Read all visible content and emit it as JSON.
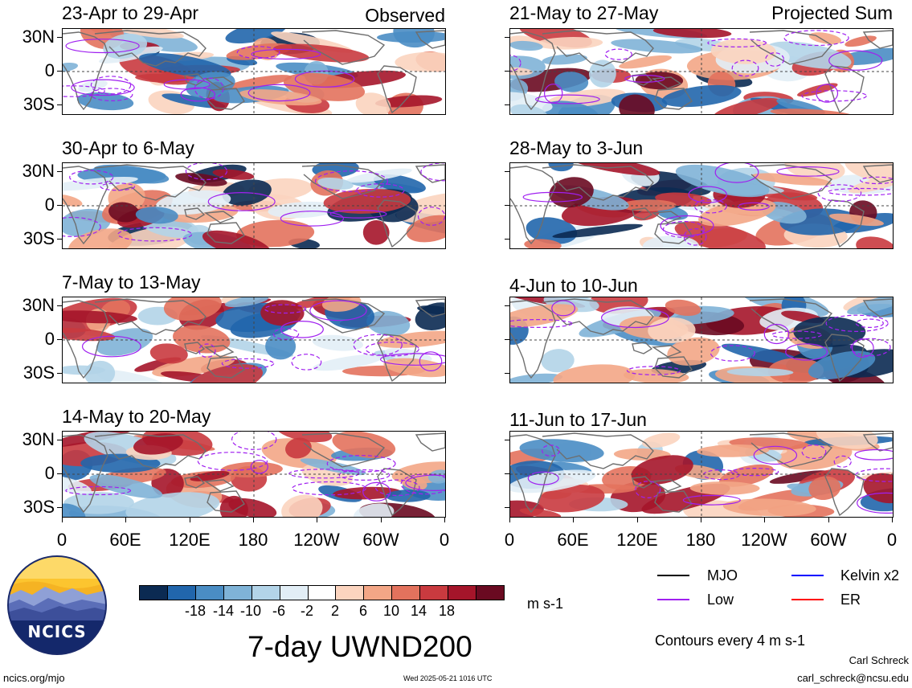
{
  "headers": {
    "left": "Observed",
    "right": "Projected Sum"
  },
  "panels": {
    "left": [
      {
        "title": "23-Apr to 29-Apr"
      },
      {
        "title": "30-Apr to 6-May"
      },
      {
        "title": "7-May to 13-May"
      },
      {
        "title": "14-May to 20-May"
      }
    ],
    "right": [
      {
        "title": "21-May to 27-May"
      },
      {
        "title": "28-May to 3-Jun"
      },
      {
        "title": "4-Jun to 10-Jun"
      },
      {
        "title": "11-Jun to 17-Jun"
      }
    ]
  },
  "lat_labels": [
    "30N",
    "0",
    "30S"
  ],
  "lon_labels": [
    "0",
    "60E",
    "120E",
    "180",
    "120W",
    "60W",
    "0"
  ],
  "colorbar": {
    "colors": [
      "#0b2a52",
      "#2166ac",
      "#4a8dc4",
      "#7fb3d7",
      "#b3d4e8",
      "#e2eef6",
      "#ffffff",
      "#fbd4bf",
      "#f3a686",
      "#e3725d",
      "#c93a3f",
      "#a5152a",
      "#6a0a21"
    ],
    "labels": [
      "-18",
      "-14",
      "-10",
      "-6",
      "-2",
      "2",
      "6",
      "10",
      "14",
      "18"
    ],
    "units": "m s-1"
  },
  "legend": {
    "items": [
      {
        "label": "MJO",
        "color": "#000000"
      },
      {
        "label": "Kelvin x2",
        "color": "#0000ff"
      },
      {
        "label": "Low",
        "color": "#a020f0"
      },
      {
        "label": "ER",
        "color": "#ff0000"
      }
    ],
    "contour_note": "Contours every 4 m s-1"
  },
  "title": "7-day UWND200",
  "logo_text": "NCICS",
  "footer": {
    "url": "ncics.org/mjo",
    "timestamp": "Wed 2025-05-21 1016 UTC",
    "author": "Carl Schreck",
    "email": "carl_schreck@ncsu.edu"
  }
}
